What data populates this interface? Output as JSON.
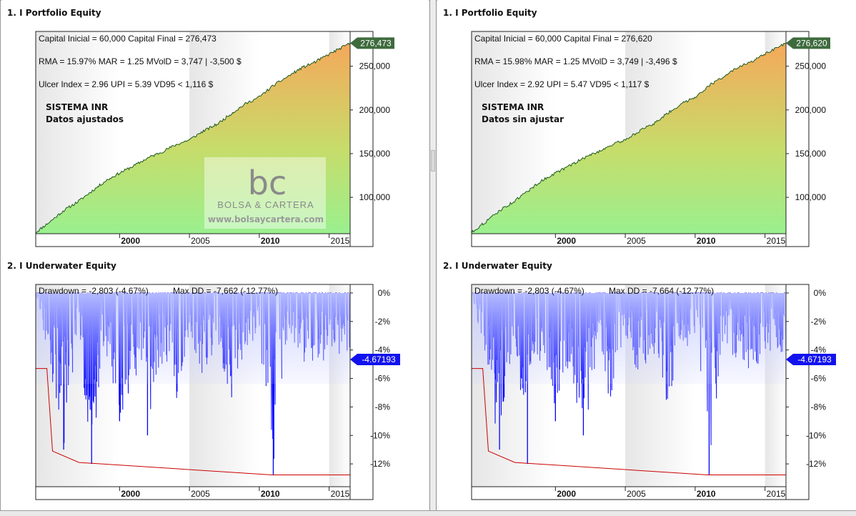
{
  "panels": [
    {
      "equity_title": "1. I Portfolio Equity",
      "underwater_title": "2. I Underwater Equity",
      "equity_lines": [
        "Capital Inicial = 60,000  Capital Final = 276,473",
        "RMA = 15.97%   MAR = 1.25   MVolD = 3,747 | -3,500 $",
        "Ulcer Index = 2.96   UPI = 5.39   VD95 < 1,116 $"
      ],
      "system_name": "SISTEMA INR",
      "data_note": "Datos ajustados",
      "equity_marker": "276,473",
      "drawdown_text": "Drawdown = -2,803 (-4.67%)",
      "maxdd_text": "Max DD = -7,662 (-12.77%)",
      "dd_marker": "-4.67193",
      "watermark": {
        "brand": "BOLSA & CARTERA",
        "url": "www.bolsaycartera.com",
        "logo": "bc"
      }
    },
    {
      "equity_title": "1. I Portfolio Equity",
      "underwater_title": "2. I Underwater Equity",
      "equity_lines": [
        "Capital Inicial = 60,000  Capital Final = 276,620",
        "RMA = 15.98%   MAR = 1.25   MVolD = 3,749 | -3,496 $",
        "Ulcer Index = 2.92   UPI = 5.47   VD95 < 1,117 $"
      ],
      "system_name": "SISTEMA INR",
      "data_note": "Datos sin ajustar",
      "equity_marker": "276,620",
      "drawdown_text": "Drawdown = -2,803 (-4.67%)",
      "maxdd_text": "Max DD = -7,664 (-12.77%)",
      "dd_marker": "-4.67193",
      "watermark": null
    }
  ],
  "chart_data": [
    {
      "type": "area",
      "title": "1. I Portfolio Equity",
      "x_ticks": [
        "2000",
        "2005",
        "2010",
        "2015"
      ],
      "y_ticks": [
        "100,000",
        "150,000",
        "200,000",
        "250,000"
      ],
      "ylim": [
        60000,
        280000
      ],
      "xlim": [
        1994,
        2016.5
      ],
      "series": [
        {
          "name": "",
          "x": [
            1994,
            1995,
            1996,
            1997,
            1998,
            1999,
            2000,
            2001,
            2002,
            2003,
            2004,
            2005,
            2006,
            2007,
            2008,
            2009,
            2010,
            2011,
            2012,
            2013,
            2014,
            2015,
            2016.5
          ],
          "values": [
            60000,
            72000,
            85000,
            95000,
            107000,
            119000,
            128000,
            136000,
            145000,
            152000,
            160000,
            166000,
            176000,
            184000,
            196000,
            207000,
            215000,
            228000,
            238000,
            248000,
            255000,
            264000,
            276473
          ]
        }
      ],
      "grid": false,
      "legend": "none",
      "colors": {
        "area_top": "#f5a85a",
        "area_mid": "#c7dc6a",
        "area_bottom": "#9af08f",
        "line": "#1f5a1f",
        "marker": "#3e6b3e"
      }
    },
    {
      "type": "line",
      "title": "2. I Underwater Equity",
      "x_ticks": [
        "2000",
        "2005",
        "2010",
        "2015"
      ],
      "y_ticks": [
        "0%",
        "-2%",
        "-4%",
        "-6%",
        "-8%",
        "-10%",
        "-12%"
      ],
      "ylim": [
        -13.5,
        0.5
      ],
      "xlim": [
        1994,
        2016.5
      ],
      "series": [
        {
          "name": "",
          "x": [
            1994,
            1995,
            1996,
            1997,
            1998,
            1999,
            2000,
            2001,
            2002,
            2003,
            2004,
            2005,
            2006,
            2007,
            2008,
            2009,
            2010,
            2011,
            2012,
            2013,
            2014,
            2015,
            2016.5
          ],
          "values": [
            0,
            -5.3,
            -11,
            -3,
            -12,
            -4,
            -9,
            -6,
            -10,
            -5,
            -8,
            -3,
            -6,
            -4,
            -8,
            -4,
            -3.5,
            -12.8,
            -3,
            -5,
            -6,
            -4,
            -4.67
          ]
        },
        {
          "name": "",
          "x": [
            1994,
            1994.8,
            1994.8,
            1995.2,
            1995.2,
            1997.1,
            1997.1,
            2010.9,
            2010.9,
            2016.5
          ],
          "values": [
            -5.3,
            -5.3,
            -5.3,
            -11.1,
            -11.1,
            -11.9,
            -11.9,
            -12.77,
            -12.77,
            -12.77
          ]
        }
      ],
      "grid": false,
      "legend": "none",
      "colors": {
        "bars": "#0000ff",
        "fill": "#c8cfff",
        "maxdd": "#cc0000",
        "marker": "#1212ee"
      }
    }
  ]
}
